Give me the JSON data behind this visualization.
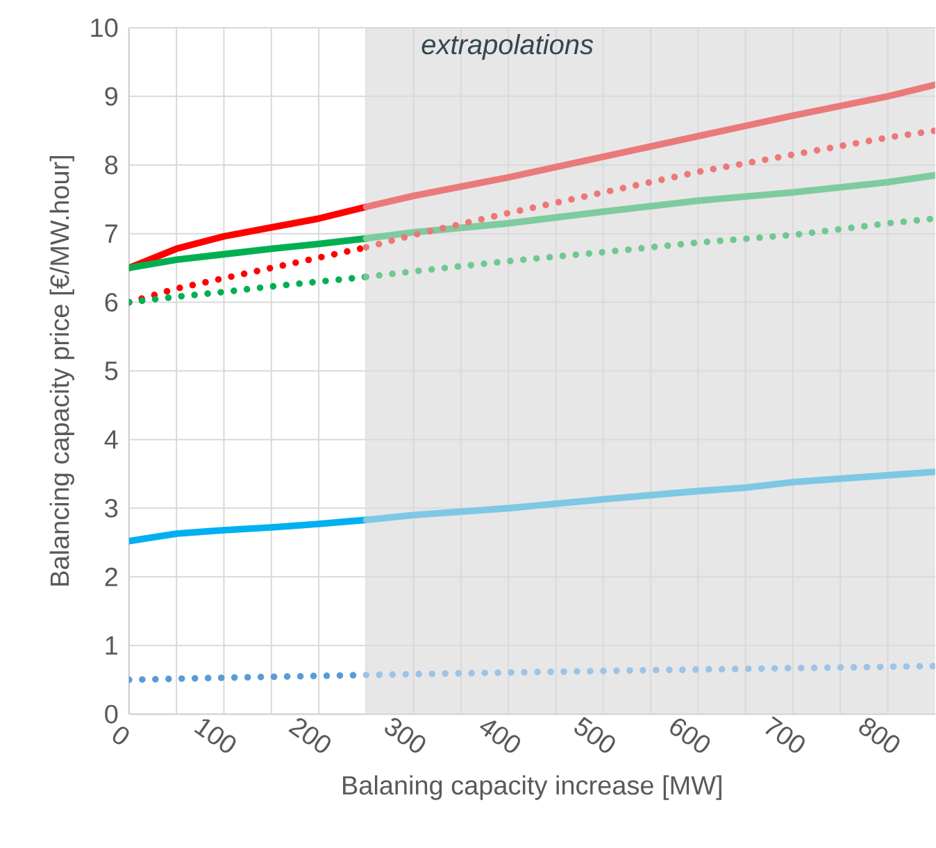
{
  "chart_data": {
    "type": "line",
    "xlabel": "Balaning capacity increase [MW]",
    "ylabel": "Balancing capacity price [€/MW.hour]",
    "xlim": [
      0,
      850
    ],
    "ylim": [
      0,
      10
    ],
    "xticks": [
      0,
      {
        "value": 50,
        "label": null
      },
      100,
      {
        "value": 150,
        "label": null
      },
      200,
      {
        "value": 250,
        "label": null
      },
      300,
      {
        "value": 350,
        "label": null
      },
      400,
      {
        "value": 450,
        "label": null
      },
      500,
      {
        "value": 550,
        "label": null
      },
      600,
      {
        "value": 650,
        "label": null
      },
      700,
      {
        "value": 750,
        "label": null
      },
      800
    ],
    "yticks": [
      0,
      1,
      2,
      3,
      4,
      5,
      6,
      7,
      8,
      9,
      10
    ],
    "grid": true,
    "bands": [
      {
        "axis": "x",
        "from": 250,
        "to": 850,
        "label": "extrapolations",
        "color": "#e7e7e7"
      }
    ],
    "series": [
      {
        "x": [
          0,
          50,
          100,
          150,
          200,
          250
        ],
        "values": [
          6.5,
          6.78,
          6.96,
          7.09,
          7.22,
          7.39
        ],
        "color": "#ff0000",
        "line_style": "solid"
      },
      {
        "x": [
          250,
          300,
          400,
          500,
          600,
          700,
          800,
          850
        ],
        "values": [
          7.39,
          7.55,
          7.82,
          8.12,
          8.42,
          8.72,
          9.0,
          9.17
        ],
        "color": "#ea7a7a",
        "line_style": "solid"
      },
      {
        "x": [
          0,
          50,
          100,
          150,
          200,
          250
        ],
        "values": [
          6.5,
          6.62,
          6.7,
          6.78,
          6.85,
          6.93
        ],
        "color": "#00b050",
        "line_style": "solid"
      },
      {
        "x": [
          250,
          300,
          400,
          500,
          600,
          700,
          800,
          850
        ],
        "values": [
          6.93,
          7.02,
          7.15,
          7.32,
          7.48,
          7.6,
          7.75,
          7.85
        ],
        "color": "#7fcba0",
        "line_style": "solid"
      },
      {
        "x": [
          0,
          50,
          100,
          150,
          200,
          250
        ],
        "values": [
          6.0,
          6.2,
          6.35,
          6.5,
          6.65,
          6.8
        ],
        "color": "#ff0000",
        "line_style": "dotted"
      },
      {
        "x": [
          250,
          300,
          400,
          500,
          600,
          700,
          800,
          850
        ],
        "values": [
          6.8,
          6.98,
          7.3,
          7.6,
          7.9,
          8.15,
          8.4,
          8.5
        ],
        "color": "#ee7777",
        "line_style": "dotted"
      },
      {
        "x": [
          0,
          50,
          100,
          150,
          200,
          250
        ],
        "values": [
          6.0,
          6.08,
          6.15,
          6.23,
          6.3,
          6.37
        ],
        "color": "#00b050",
        "line_style": "dotted"
      },
      {
        "x": [
          250,
          300,
          400,
          500,
          600,
          700,
          800,
          850
        ],
        "values": [
          6.37,
          6.45,
          6.6,
          6.73,
          6.87,
          6.98,
          7.15,
          7.22
        ],
        "color": "#70c890",
        "line_style": "dotted"
      },
      {
        "x": [
          0,
          50,
          100,
          150,
          200,
          250
        ],
        "values": [
          2.52,
          2.63,
          2.68,
          2.72,
          2.77,
          2.83
        ],
        "color": "#00b0f0",
        "line_style": "solid"
      },
      {
        "x": [
          250,
          300,
          400,
          500,
          600,
          650,
          700,
          800,
          850
        ],
        "values": [
          2.83,
          2.9,
          3.0,
          3.13,
          3.25,
          3.3,
          3.38,
          3.48,
          3.53
        ],
        "color": "#7ec8e3",
        "line_style": "solid"
      },
      {
        "x": [
          0,
          100,
          250
        ],
        "values": [
          0.5,
          0.53,
          0.57
        ],
        "color": "#5b9bd5",
        "line_style": "dotted"
      },
      {
        "x": [
          250,
          500,
          850
        ],
        "values": [
          0.57,
          0.63,
          0.7
        ],
        "color": "#9dc3e6",
        "line_style": "dotted"
      }
    ]
  }
}
